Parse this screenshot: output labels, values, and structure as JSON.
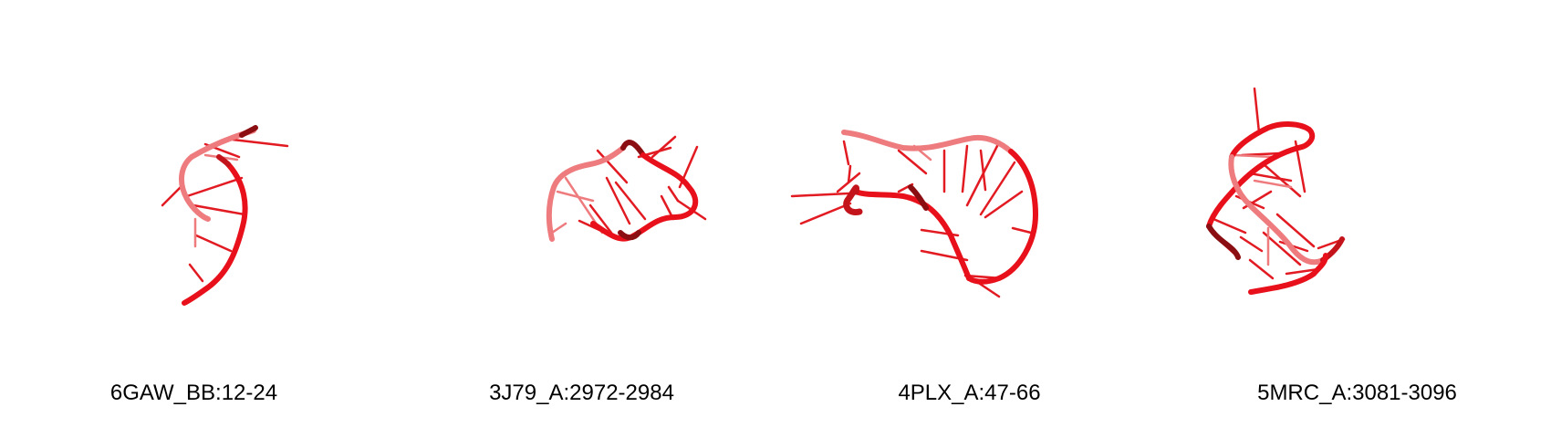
{
  "panels": [
    {
      "label": "6GAW_BB:12-24",
      "structure": "rna-cartoon"
    },
    {
      "label": "3J79_A:2972-2984",
      "structure": "rna-cartoon"
    },
    {
      "label": "4PLX_A:47-66",
      "structure": "rna-cartoon"
    },
    {
      "label": "5MRC_A:3081-3096",
      "structure": "rna-cartoon"
    }
  ],
  "colors": {
    "backbone_front": "#e8101a",
    "backbone_back": "#ee7b7e",
    "backbone_dark": "#8a0e12",
    "base": "#e21a22",
    "background": "#ffffff"
  }
}
